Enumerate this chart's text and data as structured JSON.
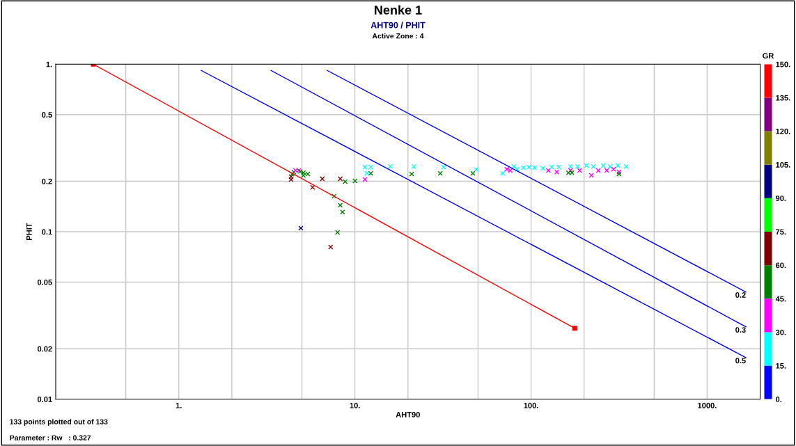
{
  "chart_data": {
    "type": "scatter",
    "title": "Nenke 1",
    "subtitle": "AHT90 / PHIT",
    "xlabel": "AHT90",
    "ylabel": "PHIT",
    "clabel": "GR",
    "log": "xy",
    "grid": true,
    "legend": false,
    "annotations": [
      "Active Zone : 4",
      "133 points plotted out of 133",
      "Parameter : Rw   : 0.327"
    ],
    "xlim": [
      0.2,
      2000
    ],
    "ylim": [
      0.01,
      1
    ],
    "xticks": [
      {
        "value": 0.5,
        "label": null
      },
      {
        "value": 1,
        "label": "1."
      },
      {
        "value": 2,
        "label": null
      },
      {
        "value": 5,
        "label": null
      },
      {
        "value": 10,
        "label": "10."
      },
      {
        "value": 20,
        "label": null
      },
      {
        "value": 50,
        "label": null
      },
      {
        "value": 100,
        "label": "100."
      },
      {
        "value": 200,
        "label": null
      },
      {
        "value": 500,
        "label": null
      },
      {
        "value": 1000,
        "label": "1000."
      }
    ],
    "yticks": [
      0.01,
      0.02,
      0.05,
      0.1,
      0.2,
      0.5,
      {
        "value": 1,
        "label": "1."
      }
    ],
    "clim": [
      0,
      150
    ],
    "cticks": [
      {
        "value": 0,
        "label": "0."
      },
      {
        "value": 15,
        "label": "15."
      },
      {
        "value": 30,
        "label": "30."
      },
      {
        "value": 45,
        "label": "45."
      },
      {
        "value": 60,
        "label": "60."
      },
      {
        "value": 75,
        "label": "75."
      },
      {
        "value": 90,
        "label": "90."
      },
      {
        "value": 105,
        "label": "105."
      },
      {
        "value": 120,
        "label": "120."
      },
      {
        "value": 135,
        "label": "135."
      },
      {
        "value": 150,
        "label": "150."
      }
    ],
    "colors": [
      "#0000ff",
      "#00ffff",
      "#ff00ff",
      "#008000",
      "#800000",
      "#00ff00",
      "#000080",
      "#808000",
      "#800080",
      "#ff0000"
    ],
    "series": [
      {
        "type": "line",
        "color": "#ff0000",
        "marker": "square",
        "x": [
          0.327,
          177
        ],
        "values": [
          1,
          0.0265
        ]
      },
      {
        "type": "line",
        "name": "0.5",
        "color": "#0000ff",
        "marker": "none",
        "x": [
          1.34,
          1661
        ],
        "values": [
          0.918,
          0.0177
        ]
      },
      {
        "type": "line",
        "name": "0.3",
        "color": "#0000ff",
        "marker": "none",
        "x": [
          3.34,
          1661
        ],
        "values": [
          0.918,
          0.027
        ]
      },
      {
        "type": "line",
        "name": "0.2",
        "color": "#0000ff",
        "marker": "none",
        "x": [
          6.96,
          1661
        ],
        "values": [
          0.918,
          0.0436
        ]
      },
      {
        "marker": "cross",
        "colors": [
          "#800000",
          "#800000",
          "#008000",
          "#008000",
          "#ff00ff",
          "#ff00ff",
          "#008000",
          "#008000",
          "#008000",
          "#008000",
          "#800000",
          "#800000",
          "#800000",
          "#008000",
          "#008000",
          "#008000",
          "#008000",
          "#008000",
          "#000080",
          "#008000",
          "#800000",
          "#ff00ff",
          "#00ffff",
          "#00ffff",
          "#00ffff",
          "#008000",
          "#00ffff",
          "#00ffff",
          "#008000",
          "#00ffff",
          "#008000",
          "#00ffff",
          "#008000",
          "#00ffff",
          "#ff00ff",
          "#ff00ff",
          "#00ffff",
          "#00ffff",
          "#00ffff",
          "#00ffff",
          "#00ffff",
          "#00ffff",
          "#ff00ff",
          "#00ffff",
          "#ff00ff",
          "#00ffff",
          "#00ffff",
          "#ff00ff",
          "#008000",
          "#008000",
          "#00ffff",
          "#ff00ff",
          "#00ffff",
          "#00ffff",
          "#ff00ff",
          "#ff00ff",
          "#00ffff",
          "#ff00ff",
          "#00ffff",
          "#00ffff",
          "#ff00ff",
          "#ff00ff",
          "#008000",
          "#00ffff"
        ],
        "x": [
          4.34,
          4.34,
          4.4,
          4.5,
          4.6,
          4.8,
          4.9,
          5.1,
          5.4,
          5.1,
          5.75,
          6.53,
          8.26,
          8.8,
          10,
          7.62,
          8.26,
          8.5,
          4.93,
          7.97,
          7.28,
          11.4,
          11.4,
          12.3,
          11.7,
          12.3,
          15.9,
          21.6,
          21,
          31.9,
          30.5,
          48.9,
          46.7,
          69,
          72.8,
          76.2,
          79.8,
          83.4,
          90.5,
          97.3,
          104.6,
          116.7,
          125.4,
          131,
          140,
          143.7,
          167.6,
          167.6,
          163,
          170.7,
          183.6,
          188.6,
          206.5,
          226,
          220,
          241,
          257,
          269,
          281,
          311,
          294,
          316,
          316,
          346
        ],
        "values": [
          0.213,
          0.205,
          0.221,
          0.227,
          0.232,
          0.232,
          0.229,
          0.225,
          0.221,
          0.217,
          0.184,
          0.207,
          0.207,
          0.199,
          0.201,
          0.163,
          0.144,
          0.131,
          0.105,
          0.099,
          0.081,
          0.205,
          0.243,
          0.243,
          0.223,
          0.223,
          0.245,
          0.245,
          0.221,
          0.243,
          0.223,
          0.235,
          0.223,
          0.223,
          0.236,
          0.232,
          0.245,
          0.236,
          0.241,
          0.243,
          0.241,
          0.239,
          0.232,
          0.243,
          0.227,
          0.243,
          0.245,
          0.232,
          0.225,
          0.225,
          0.245,
          0.232,
          0.248,
          0.245,
          0.217,
          0.232,
          0.248,
          0.232,
          0.245,
          0.248,
          0.236,
          0.227,
          0.221,
          0.245
        ]
      }
    ]
  }
}
